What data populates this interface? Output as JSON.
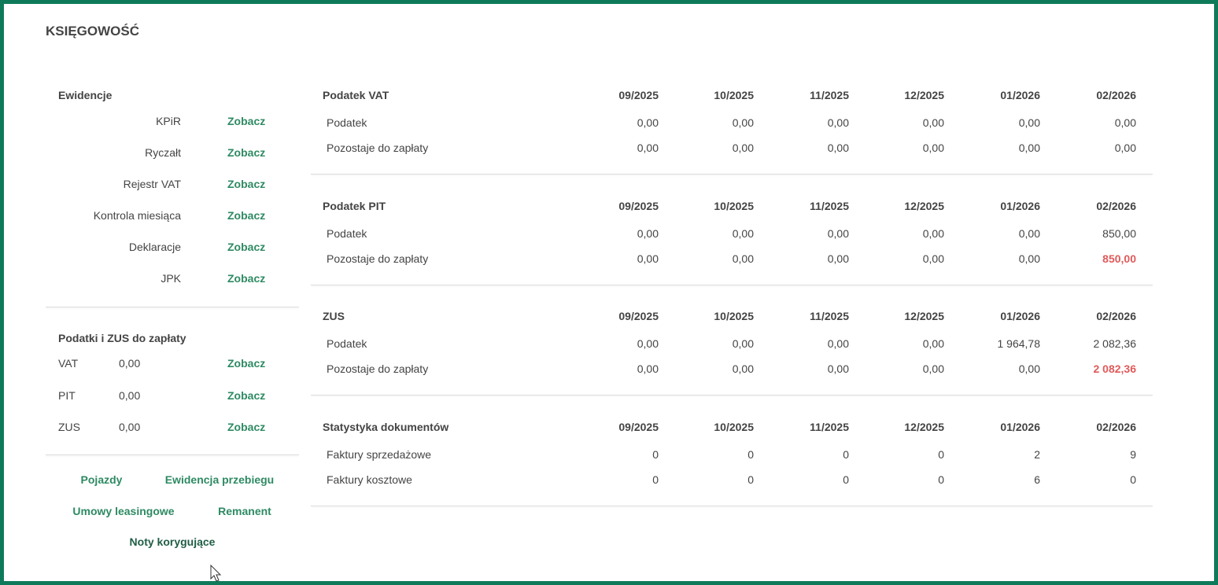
{
  "header": {
    "title": "KSIĘGOWOŚĆ"
  },
  "ewidencje": {
    "title": "Ewidencje",
    "rows": [
      {
        "label": "KPiR",
        "link": "Zobacz"
      },
      {
        "label": "Ryczałt",
        "link": "Zobacz"
      },
      {
        "label": "Rejestr VAT",
        "link": "Zobacz"
      },
      {
        "label": "Kontrola miesiąca",
        "link": "Zobacz"
      },
      {
        "label": "Deklaracje",
        "link": "Zobacz"
      },
      {
        "label": "JPK",
        "link": "Zobacz"
      }
    ]
  },
  "taxes_due": {
    "title": "Podatki i ZUS do zapłaty",
    "rows": [
      {
        "label": "VAT",
        "amount": "0,00",
        "link": "Zobacz"
      },
      {
        "label": "PIT",
        "amount": "0,00",
        "link": "Zobacz"
      },
      {
        "label": "ZUS",
        "amount": "0,00",
        "link": "Zobacz"
      }
    ]
  },
  "links": [
    "Pojazdy",
    "Ewidencja przebiegu",
    "Umowy leasingowe",
    "Remanent",
    "Noty korygujące"
  ],
  "tables": [
    {
      "title": "Podatek VAT",
      "columns": [
        "09/2025",
        "10/2025",
        "11/2025",
        "12/2025",
        "01/2026",
        "02/2026"
      ],
      "rows": [
        {
          "label": "Podatek",
          "values": [
            "0,00",
            "0,00",
            "0,00",
            "0,00",
            "0,00",
            "0,00"
          ]
        },
        {
          "label": "Pozostaje do zapłaty",
          "values": [
            "0,00",
            "0,00",
            "0,00",
            "0,00",
            "0,00",
            "0,00"
          ]
        }
      ]
    },
    {
      "title": "Podatek PIT",
      "columns": [
        "09/2025",
        "10/2025",
        "11/2025",
        "12/2025",
        "01/2026",
        "02/2026"
      ],
      "rows": [
        {
          "label": "Podatek",
          "values": [
            "0,00",
            "0,00",
            "0,00",
            "0,00",
            "0,00",
            "850,00"
          ]
        },
        {
          "label": "Pozostaje do zapłaty",
          "values": [
            "0,00",
            "0,00",
            "0,00",
            "0,00",
            "0,00",
            "850,00"
          ],
          "highlight": [
            5
          ]
        }
      ]
    },
    {
      "title": "ZUS",
      "columns": [
        "09/2025",
        "10/2025",
        "11/2025",
        "12/2025",
        "01/2026",
        "02/2026"
      ],
      "rows": [
        {
          "label": "Podatek",
          "values": [
            "0,00",
            "0,00",
            "0,00",
            "0,00",
            "1 964,78",
            "2 082,36"
          ]
        },
        {
          "label": "Pozostaje do zapłaty",
          "values": [
            "0,00",
            "0,00",
            "0,00",
            "0,00",
            "0,00",
            "2 082,36"
          ],
          "highlight": [
            5
          ]
        }
      ]
    },
    {
      "title": "Statystyka dokumentów",
      "columns": [
        "09/2025",
        "10/2025",
        "11/2025",
        "12/2025",
        "01/2026",
        "02/2026"
      ],
      "rows": [
        {
          "label": "Faktury sprzedażowe",
          "values": [
            "0",
            "0",
            "0",
            "0",
            "2",
            "9"
          ]
        },
        {
          "label": "Faktury kosztowe",
          "values": [
            "0",
            "0",
            "0",
            "0",
            "6",
            "0"
          ]
        }
      ]
    }
  ]
}
